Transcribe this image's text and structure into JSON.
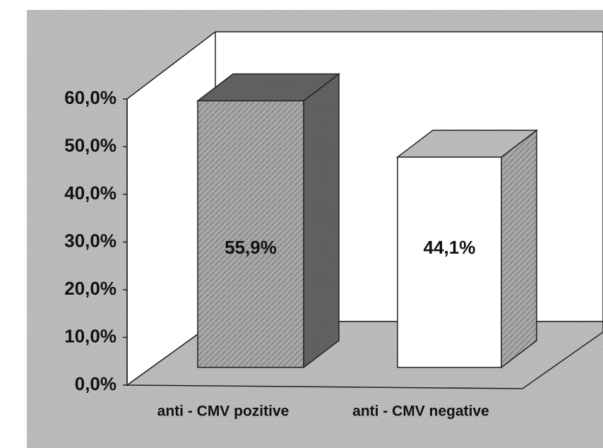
{
  "chart_data": {
    "type": "bar3d",
    "categories": [
      "anti - CMV pozitive",
      "anti - CMV negative"
    ],
    "values": [
      55.9,
      44.1
    ],
    "value_labels": [
      "55,9%",
      "44,1%"
    ],
    "colors": [
      "#9a9a9a",
      "#ffffff"
    ],
    "ylim": [
      0,
      60
    ],
    "yticks": [
      {
        "value": 0,
        "label": "0,0%"
      },
      {
        "value": 10,
        "label": "10,0%"
      },
      {
        "value": 20,
        "label": "20,0%"
      },
      {
        "value": 30,
        "label": "30,0%"
      },
      {
        "value": 40,
        "label": "40,0%"
      },
      {
        "value": 50,
        "label": "50,0%"
      },
      {
        "value": 60,
        "label": "60,0%"
      }
    ]
  }
}
